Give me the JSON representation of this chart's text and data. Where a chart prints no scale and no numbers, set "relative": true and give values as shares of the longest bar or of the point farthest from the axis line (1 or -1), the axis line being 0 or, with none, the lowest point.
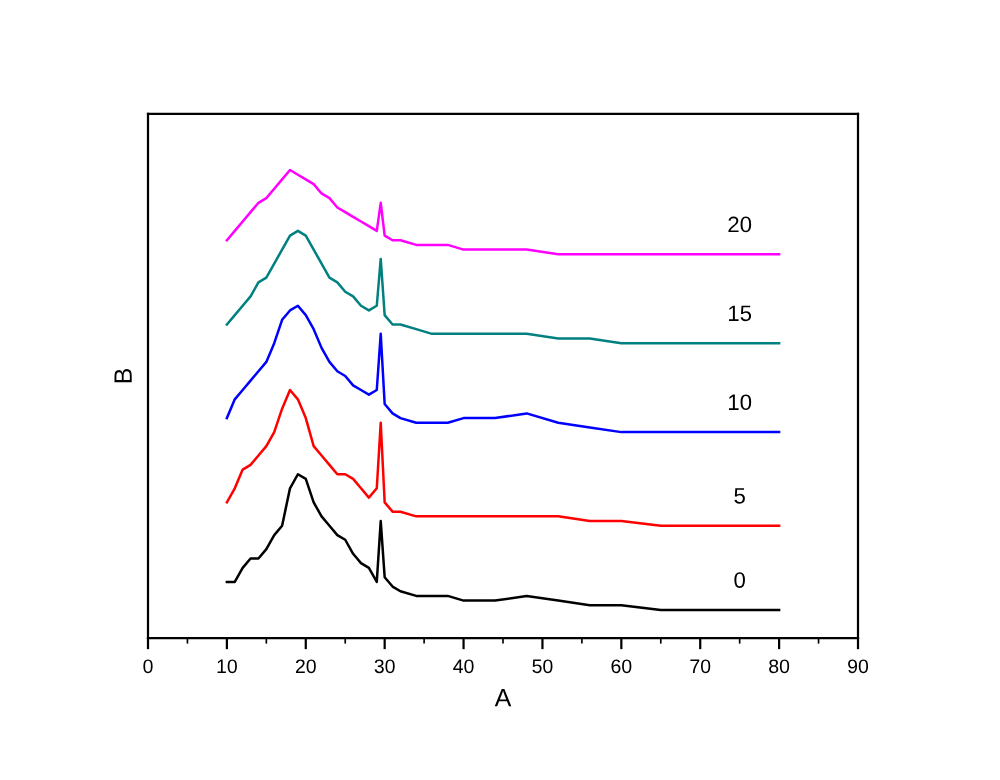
{
  "chart_data": {
    "type": "line",
    "xlabel": "A",
    "ylabel": "B",
    "relative": true,
    "legend": false,
    "grid": false,
    "x": [
      10,
      11,
      12,
      13,
      14,
      15,
      16,
      17,
      18,
      19,
      20,
      21,
      22,
      23,
      24,
      25,
      26,
      27,
      28,
      29,
      29.5,
      30,
      31,
      32,
      34,
      36,
      38,
      40,
      44,
      48,
      52,
      56,
      60,
      65,
      70,
      75,
      80
    ],
    "xlim": [
      0,
      90
    ],
    "xticks": [
      0,
      {
        "value": 5,
        "label": null
      },
      10,
      {
        "value": 15,
        "label": null
      },
      20,
      {
        "value": 25,
        "label": null
      },
      30,
      {
        "value": 35,
        "label": null
      },
      40,
      {
        "value": 45,
        "label": null
      },
      50,
      {
        "value": 55,
        "label": null
      },
      60,
      {
        "value": 65,
        "label": null
      },
      70,
      {
        "value": 75,
        "label": null
      },
      80,
      {
        "value": 85,
        "label": null
      },
      90
    ],
    "series": [
      {
        "name": "0",
        "color": "#000000",
        "values": [
          0.12,
          0.12,
          0.15,
          0.17,
          0.17,
          0.19,
          0.22,
          0.24,
          0.32,
          0.35,
          0.34,
          0.29,
          0.26,
          0.24,
          0.22,
          0.21,
          0.18,
          0.16,
          0.15,
          0.12,
          0.25,
          0.13,
          0.11,
          0.1,
          0.09,
          0.09,
          0.09,
          0.08,
          0.08,
          0.09,
          0.08,
          0.07,
          0.07,
          0.06,
          0.06,
          0.06,
          0.06
        ]
      },
      {
        "name": "5",
        "color": "#ff0000",
        "values": [
          0.29,
          0.32,
          0.36,
          0.37,
          0.39,
          0.41,
          0.44,
          0.49,
          0.53,
          0.51,
          0.47,
          0.41,
          0.39,
          0.37,
          0.35,
          0.35,
          0.34,
          0.32,
          0.3,
          0.32,
          0.46,
          0.29,
          0.27,
          0.27,
          0.26,
          0.26,
          0.26,
          0.26,
          0.26,
          0.26,
          0.26,
          0.25,
          0.25,
          0.24,
          0.24,
          0.24,
          0.24
        ]
      },
      {
        "name": "10",
        "color": "#0000ff",
        "values": [
          0.47,
          0.51,
          0.53,
          0.55,
          0.57,
          0.59,
          0.63,
          0.68,
          0.7,
          0.71,
          0.69,
          0.66,
          0.62,
          0.59,
          0.57,
          0.56,
          0.54,
          0.53,
          0.52,
          0.53,
          0.65,
          0.5,
          0.48,
          0.47,
          0.46,
          0.46,
          0.46,
          0.47,
          0.47,
          0.48,
          0.46,
          0.45,
          0.44,
          0.44,
          0.44,
          0.44,
          0.44
        ]
      },
      {
        "name": "15",
        "color": "#008080",
        "values": [
          0.67,
          0.69,
          0.71,
          0.73,
          0.76,
          0.77,
          0.8,
          0.83,
          0.86,
          0.87,
          0.86,
          0.83,
          0.8,
          0.77,
          0.76,
          0.74,
          0.73,
          0.71,
          0.7,
          0.71,
          0.81,
          0.69,
          0.67,
          0.67,
          0.66,
          0.65,
          0.65,
          0.65,
          0.65,
          0.65,
          0.64,
          0.64,
          0.63,
          0.63,
          0.63,
          0.63,
          0.63
        ]
      },
      {
        "name": "20",
        "color": "#ff00ff",
        "values": [
          0.85,
          0.87,
          0.89,
          0.91,
          0.93,
          0.94,
          0.96,
          0.98,
          1,
          0.99,
          0.98,
          0.97,
          0.95,
          0.94,
          0.92,
          0.91,
          0.9,
          0.89,
          0.88,
          0.87,
          0.93,
          0.86,
          0.85,
          0.85,
          0.84,
          0.84,
          0.84,
          0.83,
          0.83,
          0.83,
          0.82,
          0.82,
          0.82,
          0.82,
          0.82,
          0.82,
          0.82
        ]
      }
    ]
  }
}
